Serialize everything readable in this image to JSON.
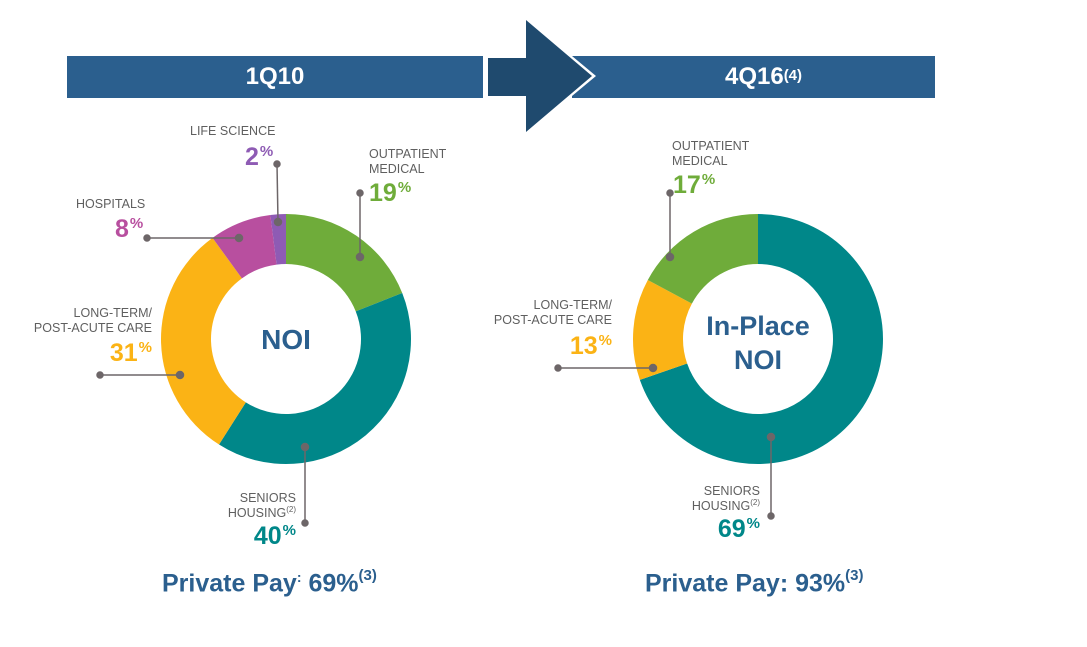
{
  "header": {
    "left_period": "1Q10",
    "right_period": "4Q16",
    "right_period_footnote": "(4)"
  },
  "colors": {
    "banner_blue": "#2b5f8e",
    "arrow_dark_blue": "#1f4a6e",
    "outpatient_green": "#6fac3a",
    "seniors_teal": "#008789",
    "ltc_yellow": "#fbb315",
    "hospitals_magenta": "#b84f9f",
    "life_science_purple": "#8e5bb4",
    "label_gray": "#5f5f5f",
    "leader_gray": "#6d6668"
  },
  "left_chart": {
    "center_label": "NOI",
    "segments": {
      "life_science": {
        "label": "LIFE SCIENCE",
        "value": "2",
        "unit": "%"
      },
      "outpatient": {
        "label_line1": "OUTPATIENT",
        "label_line2": "MEDICAL",
        "value": "19",
        "unit": "%"
      },
      "hospitals": {
        "label": "HOSPITALS",
        "value": "8",
        "unit": "%"
      },
      "ltc": {
        "label_line1": "LONG-TERM/",
        "label_line2": "POST-ACUTE CARE",
        "value": "31",
        "unit": "%"
      },
      "seniors": {
        "label_line1": "SENIORS",
        "label_line2": "HOUSING",
        "footnote": "(2)",
        "value": "40",
        "unit": "%"
      }
    },
    "private_pay": {
      "label": "Private Pay",
      "colon": ":",
      "value": "69%",
      "footnote": "(3)"
    }
  },
  "right_chart": {
    "center_label_line1": "In-Place",
    "center_label_line2": "NOI",
    "segments": {
      "outpatient": {
        "label_line1": "OUTPATIENT",
        "label_line2": "MEDICAL",
        "value": "17",
        "unit": "%"
      },
      "ltc": {
        "label_line1": "LONG-TERM/",
        "label_line2": "POST-ACUTE CARE",
        "value": "13",
        "unit": "%"
      },
      "seniors": {
        "label_line1": "SENIORS",
        "label_line2": "HOUSING",
        "footnote": "(2)",
        "value": "69",
        "unit": "%"
      }
    },
    "private_pay": {
      "label": "Private Pay:",
      "value": "93%",
      "footnote": "(3)"
    }
  },
  "chart_data": [
    {
      "type": "pie",
      "title": "1Q10 NOI",
      "donut": true,
      "categories": [
        "Outpatient Medical",
        "Seniors Housing",
        "Long-Term/Post-Acute Care",
        "Hospitals",
        "Life Science"
      ],
      "values": [
        19,
        40,
        31,
        8,
        2
      ],
      "colors": [
        "#6fac3a",
        "#008789",
        "#fbb315",
        "#b84f9f",
        "#8e5bb4"
      ],
      "center_label": "NOI",
      "annotation": "Private Pay: 69%(3)"
    },
    {
      "type": "pie",
      "title": "4Q16(4) In-Place NOI",
      "donut": true,
      "categories": [
        "Seniors Housing",
        "Long-Term/Post-Acute Care",
        "Outpatient Medical"
      ],
      "values": [
        69,
        13,
        17
      ],
      "colors": [
        "#008789",
        "#fbb315",
        "#6fac3a"
      ],
      "center_label": "In-Place NOI",
      "annotation": "Private Pay: 93%(3)"
    }
  ]
}
